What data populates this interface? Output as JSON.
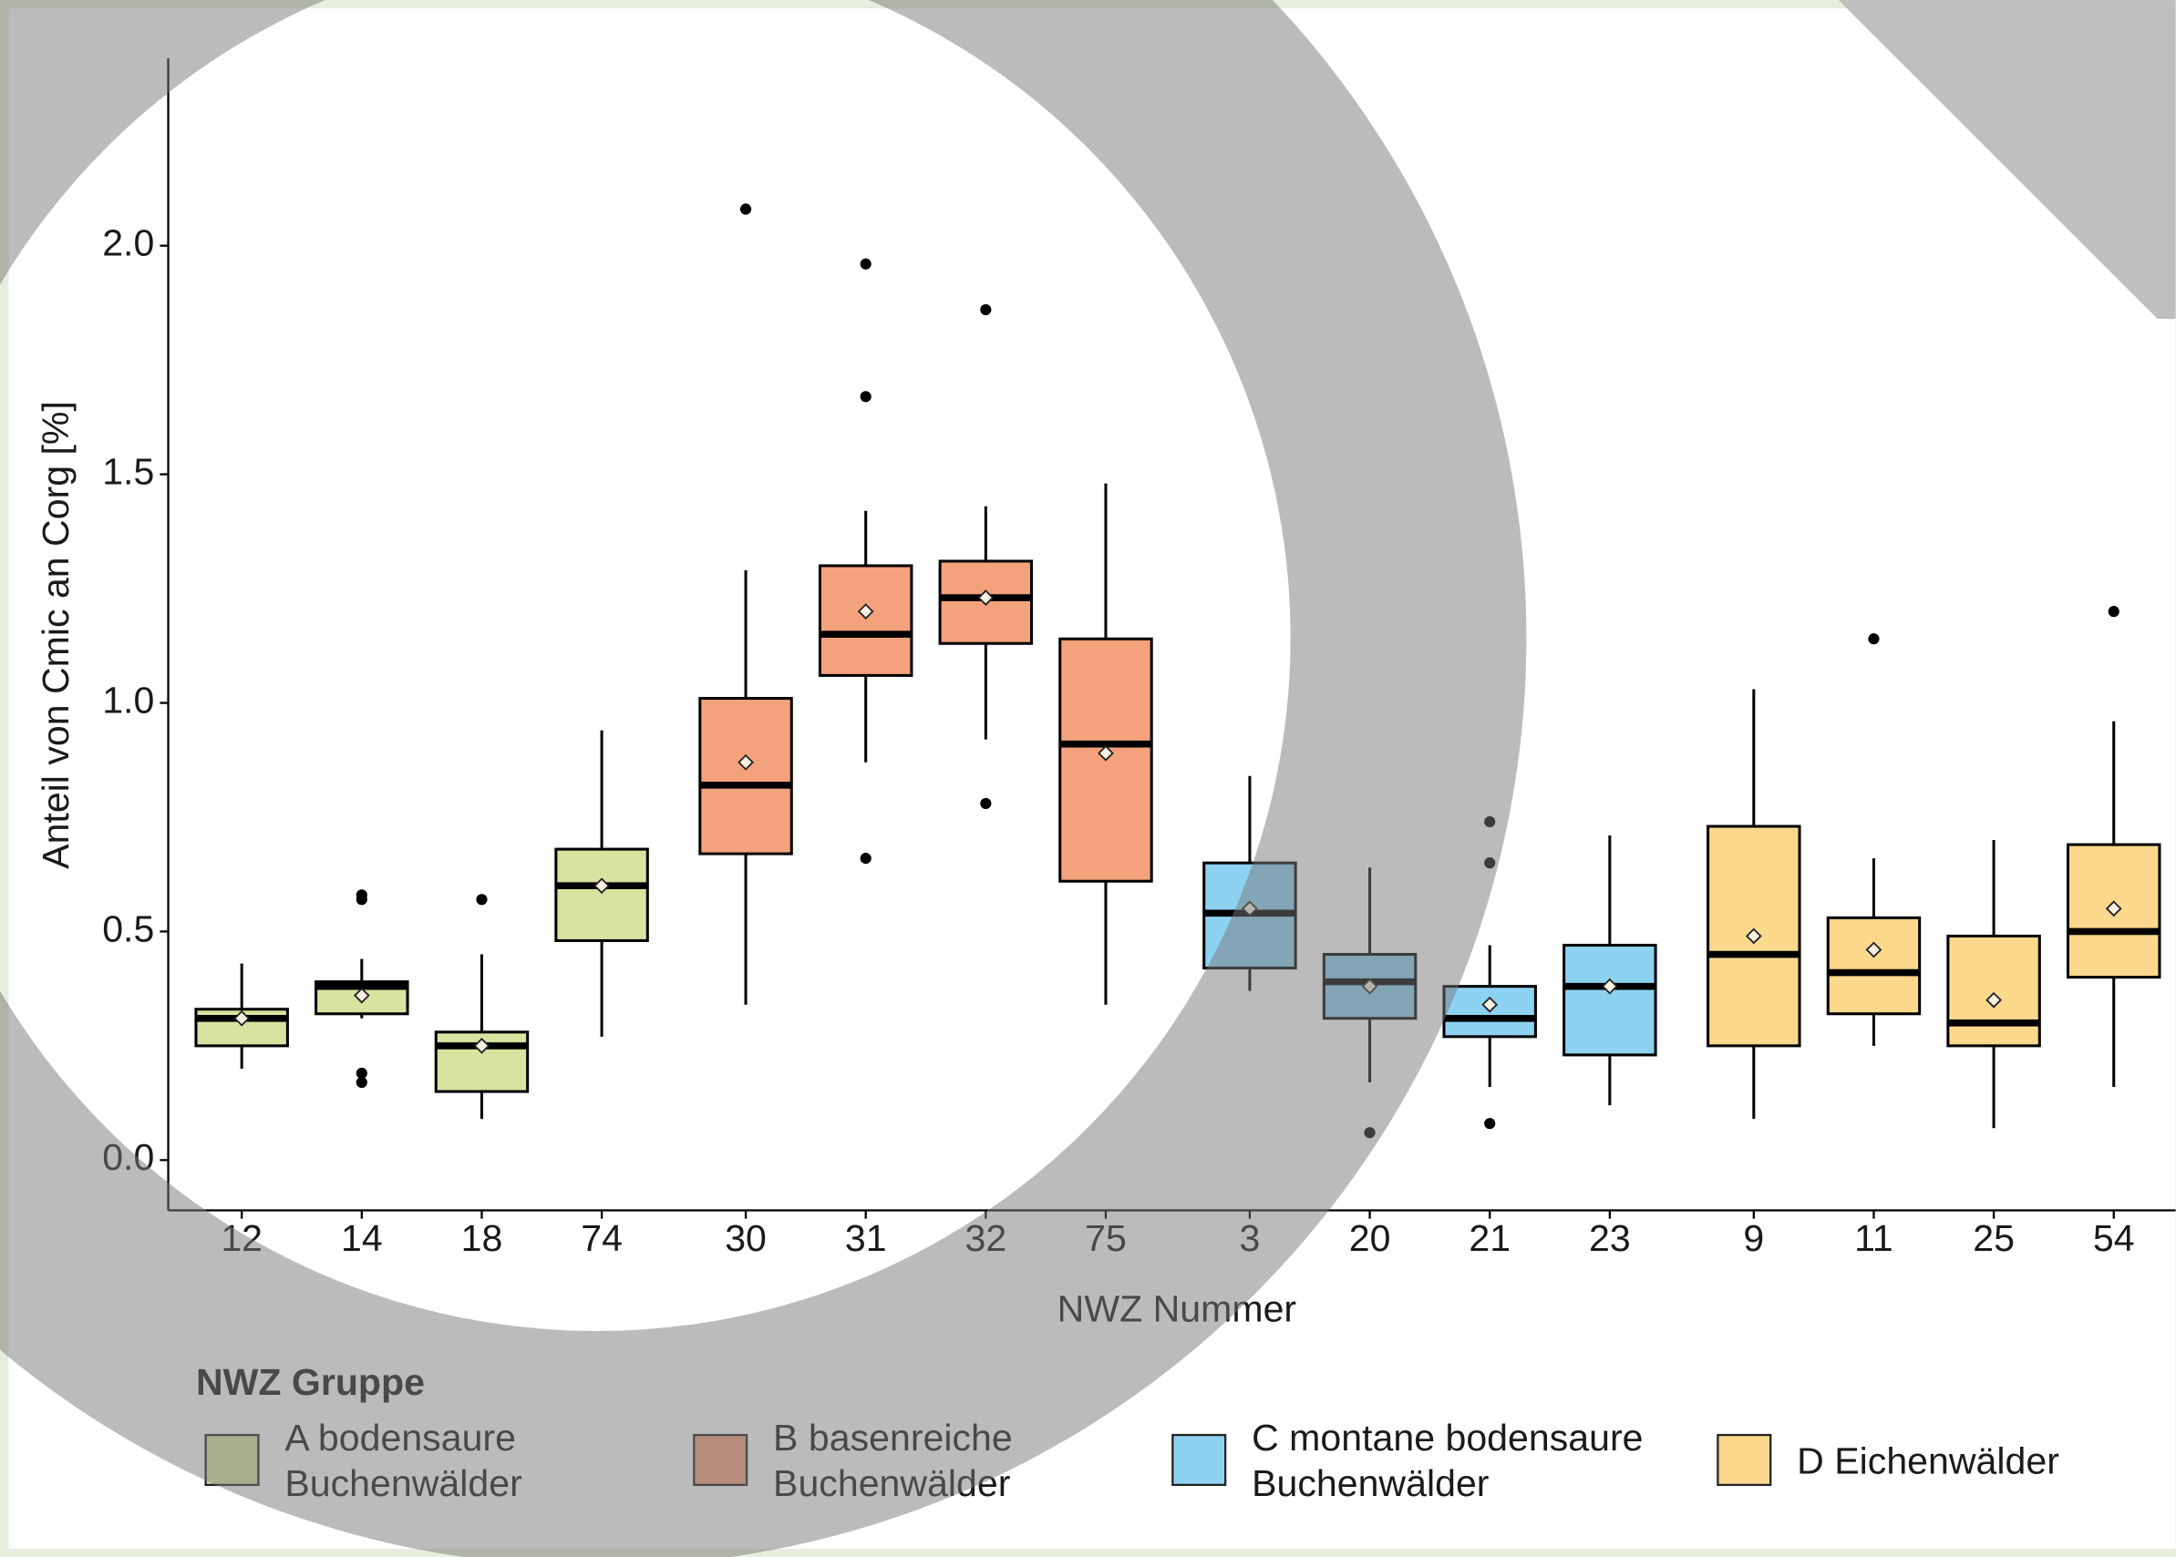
{
  "chart_data": {
    "type": "box",
    "xlabel": "NWZ Nummer",
    "ylabel": "Anteil von Cmic an Corg [%]",
    "legend_title": "NWZ Gruppe",
    "ylim": [
      -0.11,
      2.41
    ],
    "yticks": [
      {
        "value": 0,
        "label": "0.0"
      },
      0.5,
      {
        "value": 1,
        "label": "1.0"
      },
      1.5,
      {
        "value": 2,
        "label": "2.0"
      }
    ],
    "grid": false,
    "legend": "bottom",
    "series": [
      {
        "name": "A bodensaure Buchenwälder",
        "color": "#d6e49f",
        "boxes": [
          {
            "label": "12",
            "low": 0.2,
            "q1": 0.25,
            "median": 0.31,
            "q3": 0.33,
            "high": 0.43,
            "mean": 0.31,
            "outliers": []
          },
          {
            "label": "14",
            "low": 0.31,
            "q1": 0.32,
            "median": 0.38,
            "q3": 0.39,
            "high": 0.44,
            "mean": 0.36,
            "outliers": [
              0.57,
              0.58,
              0.19,
              0.17
            ]
          },
          {
            "label": "18",
            "low": 0.09,
            "q1": 0.15,
            "median": 0.25,
            "q3": 0.28,
            "high": 0.45,
            "mean": 0.25,
            "outliers": [
              0.57
            ]
          },
          {
            "label": "74",
            "low": 0.27,
            "q1": 0.48,
            "median": 0.6,
            "q3": 0.68,
            "high": 0.94,
            "mean": 0.6,
            "outliers": []
          }
        ]
      },
      {
        "name": "B basenreiche Buchenwälder",
        "color": "#f4a27c",
        "boxes": [
          {
            "label": "30",
            "low": 0.34,
            "q1": 0.67,
            "median": 0.82,
            "q3": 1.01,
            "high": 1.29,
            "mean": 0.87,
            "outliers": [
              2.08
            ]
          },
          {
            "label": "31",
            "low": 0.87,
            "q1": 1.06,
            "median": 1.15,
            "q3": 1.3,
            "high": 1.42,
            "mean": 1.2,
            "outliers": [
              1.96,
              1.67,
              0.66
            ]
          },
          {
            "label": "32",
            "low": 0.92,
            "q1": 1.13,
            "median": 1.23,
            "q3": 1.31,
            "high": 1.43,
            "mean": 1.23,
            "outliers": [
              1.86,
              0.78
            ]
          },
          {
            "label": "75",
            "low": 0.34,
            "q1": 0.61,
            "median": 0.91,
            "q3": 1.14,
            "high": 1.48,
            "mean": 0.89,
            "outliers": []
          }
        ]
      },
      {
        "name": "C montane bodensaure Buchenwälder",
        "color": "#8ed2f2",
        "boxes": [
          {
            "label": "3",
            "low": 0.37,
            "q1": 0.42,
            "median": 0.54,
            "q3": 0.65,
            "high": 0.84,
            "mean": 0.55,
            "outliers": []
          },
          {
            "label": "20",
            "low": 0.17,
            "q1": 0.31,
            "median": 0.39,
            "q3": 0.45,
            "high": 0.64,
            "mean": 0.38,
            "outliers": [
              0.06
            ]
          },
          {
            "label": "21",
            "low": 0.16,
            "q1": 0.27,
            "median": 0.31,
            "q3": 0.38,
            "high": 0.47,
            "mean": 0.34,
            "outliers": [
              0.74,
              0.65,
              0.08
            ]
          },
          {
            "label": "23",
            "low": 0.12,
            "q1": 0.23,
            "median": 0.38,
            "q3": 0.47,
            "high": 0.71,
            "mean": 0.38,
            "outliers": []
          }
        ]
      },
      {
        "name": "D Eichenwälder",
        "color": "#fbd88c",
        "boxes": [
          {
            "label": "9",
            "low": 0.09,
            "q1": 0.25,
            "median": 0.45,
            "q3": 0.73,
            "high": 1.03,
            "mean": 0.49,
            "outliers": []
          },
          {
            "label": "11",
            "low": 0.25,
            "q1": 0.32,
            "median": 0.41,
            "q3": 0.53,
            "high": 0.66,
            "mean": 0.46,
            "outliers": [
              1.14
            ]
          },
          {
            "label": "25",
            "low": 0.07,
            "q1": 0.25,
            "median": 0.3,
            "q3": 0.49,
            "high": 0.7,
            "mean": 0.35,
            "outliers": []
          },
          {
            "label": "54",
            "low": 0.16,
            "q1": 0.4,
            "median": 0.5,
            "q3": 0.69,
            "high": 0.96,
            "mean": 0.55,
            "outliers": [
              1.2
            ]
          }
        ]
      }
    ]
  }
}
